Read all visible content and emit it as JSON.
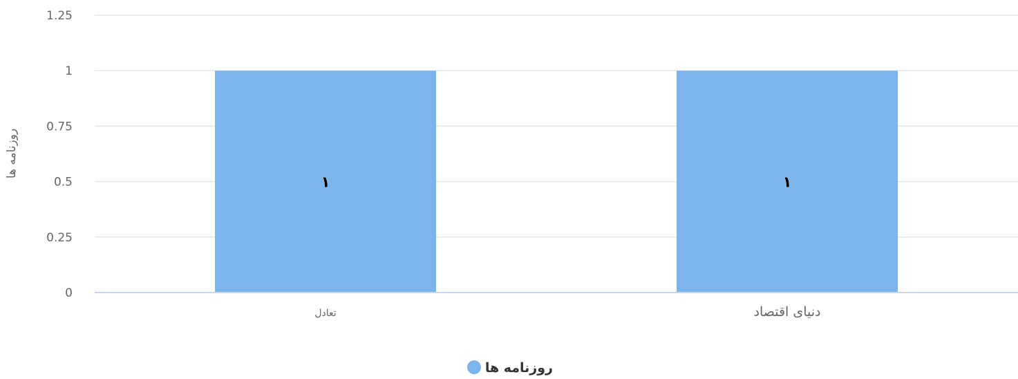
{
  "chart_data": {
    "type": "bar",
    "categories": [
      "تعادل",
      "دنیای اقتصاد"
    ],
    "series": [
      {
        "name": "روزنامه ها",
        "values": [
          1,
          1
        ],
        "data_labels": [
          "١",
          "١"
        ]
      }
    ],
    "ylabel": "روزنامه ها",
    "xlabel": "",
    "ylim": [
      0,
      1.25
    ],
    "yticks": [
      "0",
      "0.25",
      "0.5",
      "0.75",
      "1",
      "1.25"
    ],
    "grid": true,
    "legend": "bottom-center",
    "colors": {
      "bar": "#7cb5ec",
      "grid": "#e6e6e6",
      "axis": "#ccd6eb"
    }
  }
}
